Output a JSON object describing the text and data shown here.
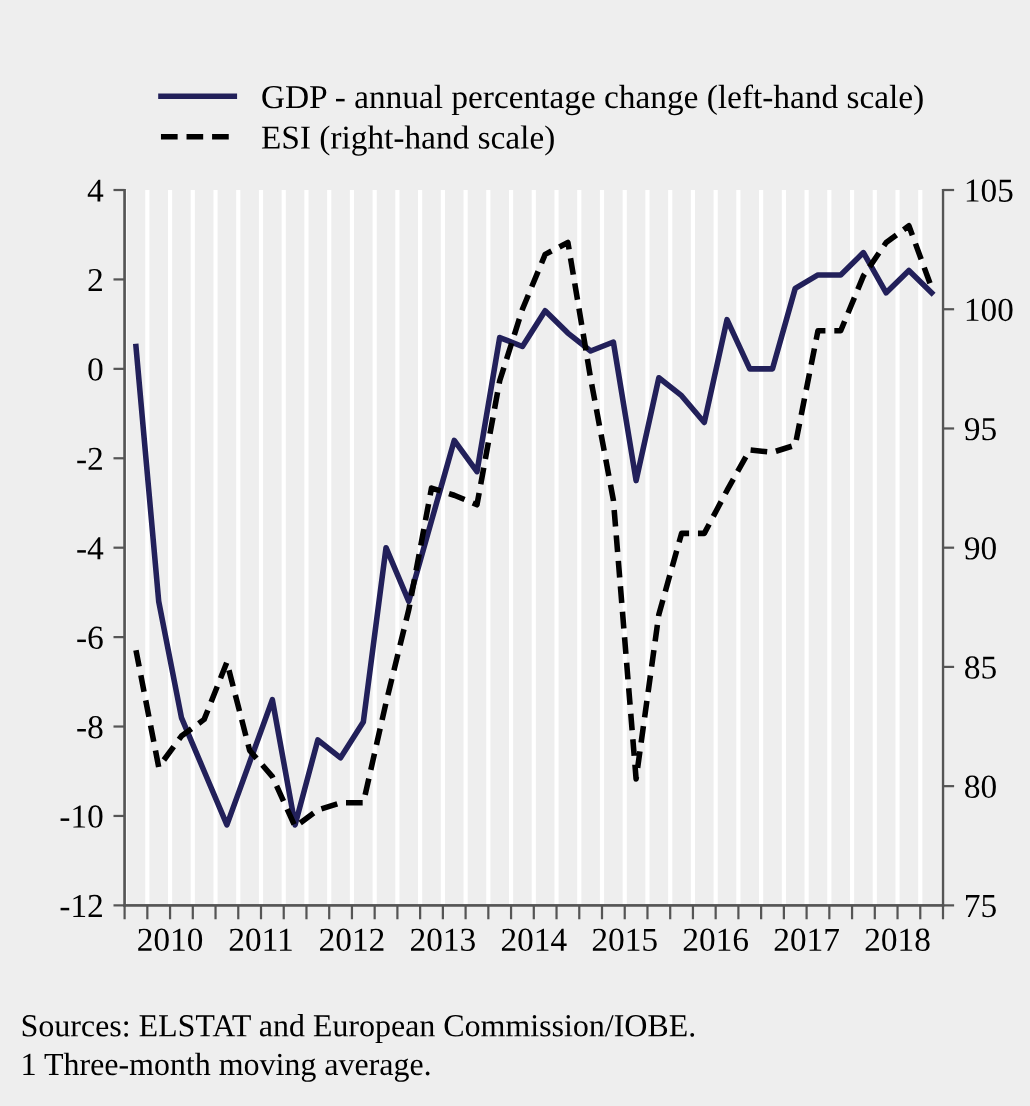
{
  "chart_data": {
    "type": "line",
    "x": [
      2010.125,
      2010.375,
      2010.625,
      2010.875,
      2011.125,
      2011.375,
      2011.625,
      2011.875,
      2012.125,
      2012.375,
      2012.625,
      2012.875,
      2013.125,
      2013.375,
      2013.625,
      2013.875,
      2014.125,
      2014.375,
      2014.625,
      2014.875,
      2015.125,
      2015.375,
      2015.625,
      2015.875,
      2016.125,
      2016.375,
      2016.625,
      2016.875,
      2017.125,
      2017.375,
      2017.625,
      2017.875,
      2018.125,
      2018.375,
      2018.625,
      2018.875
    ],
    "series": [
      {
        "name": "GDP - annual percentage change (left-hand scale)",
        "color": "#22205a",
        "line_style": "solid",
        "values": [
          0.5,
          -5.2,
          -7.8,
          -9.0,
          -10.2,
          -8.8,
          -7.4,
          -10.2,
          -8.3,
          -8.7,
          -7.9,
          -4.0,
          -5.2,
          -3.4,
          -1.6,
          -2.3,
          0.7,
          0.5,
          1.3,
          0.8,
          0.4,
          0.6,
          -2.5,
          -0.2,
          -0.6,
          -1.2,
          1.1,
          0.0,
          0.0,
          1.8,
          2.1,
          2.1,
          2.6,
          1.7,
          2.2,
          1.7
        ]
      },
      {
        "name": "ESI (right-hand scale)",
        "color": "#000000",
        "line_style": "dashed",
        "axis": "y2",
        "values": [
          85.7,
          80.8,
          82.1,
          82.8,
          85.2,
          81.5,
          80.4,
          78.3,
          79.0,
          79.3,
          79.3,
          83.5,
          87.4,
          92.5,
          92.2,
          91.8,
          97.0,
          100.0,
          102.3,
          102.8,
          97.1,
          92.0,
          80.3,
          87.2,
          90.6,
          90.6,
          92.4,
          94.1,
          94.0,
          94.3,
          99.1,
          99.1,
          101.4,
          102.8,
          103.5,
          100.9
        ]
      }
    ],
    "xlim": [
      2010,
      2019
    ],
    "xticks": [
      {
        "value": 2010.5,
        "label": "2010"
      },
      {
        "value": 2011.5,
        "label": "2011"
      },
      {
        "value": 2012.5,
        "label": "2012"
      },
      {
        "value": 2013.5,
        "label": "2013"
      },
      {
        "value": 2014.5,
        "label": "2014"
      },
      {
        "value": 2015.5,
        "label": "2015"
      },
      {
        "value": 2016.5,
        "label": "2016"
      },
      {
        "value": 2017.5,
        "label": "2017"
      },
      {
        "value": 2018.5,
        "label": "2018"
      },
      {
        "value": 2010,
        "label": null
      },
      {
        "value": 2010.25,
        "label": null
      },
      {
        "value": 2010.5,
        "label": null
      },
      {
        "value": 2010.75,
        "label": null
      },
      {
        "value": 2011,
        "label": null
      },
      {
        "value": 2011.25,
        "label": null
      },
      {
        "value": 2011.5,
        "label": null
      },
      {
        "value": 2011.75,
        "label": null
      },
      {
        "value": 2012,
        "label": null
      },
      {
        "value": 2012.25,
        "label": null
      },
      {
        "value": 2012.5,
        "label": null
      },
      {
        "value": 2012.75,
        "label": null
      },
      {
        "value": 2013,
        "label": null
      },
      {
        "value": 2013.25,
        "label": null
      },
      {
        "value": 2013.5,
        "label": null
      },
      {
        "value": 2013.75,
        "label": null
      },
      {
        "value": 2014,
        "label": null
      },
      {
        "value": 2014.25,
        "label": null
      },
      {
        "value": 2014.5,
        "label": null
      },
      {
        "value": 2014.75,
        "label": null
      },
      {
        "value": 2015,
        "label": null
      },
      {
        "value": 2015.25,
        "label": null
      },
      {
        "value": 2015.5,
        "label": null
      },
      {
        "value": 2015.75,
        "label": null
      },
      {
        "value": 2016,
        "label": null
      },
      {
        "value": 2016.25,
        "label": null
      },
      {
        "value": 2016.5,
        "label": null
      },
      {
        "value": 2016.75,
        "label": null
      },
      {
        "value": 2017,
        "label": null
      },
      {
        "value": 2017.25,
        "label": null
      },
      {
        "value": 2017.5,
        "label": null
      },
      {
        "value": 2017.75,
        "label": null
      },
      {
        "value": 2018,
        "label": null
      },
      {
        "value": 2018.25,
        "label": null
      },
      {
        "value": 2018.5,
        "label": null
      },
      {
        "value": 2018.75,
        "label": null
      },
      {
        "value": 2019,
        "label": null
      }
    ],
    "ylim": [
      -12,
      4
    ],
    "yticks": [
      -12,
      -10,
      -8,
      -6,
      -4,
      -2,
      0,
      2,
      4
    ],
    "y2lim": [
      75,
      105
    ],
    "y2ticks": [
      75,
      80,
      85,
      90,
      95,
      100,
      105
    ],
    "grid": "x",
    "legend": "top left",
    "marker": "none",
    "annotations": [
      "Sources: ELSTAT and European Commission/IOBE.",
      "1 Three-month moving average."
    ]
  }
}
